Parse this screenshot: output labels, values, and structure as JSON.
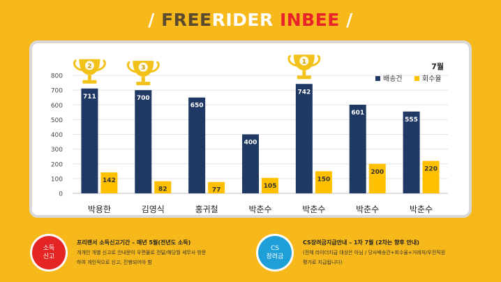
{
  "title": {
    "slash_left": "/",
    "free": "FREE",
    "rider": "RIDER",
    "inbee": "INBEE",
    "slash_right": "/"
  },
  "colors": {
    "background": "#f6b81a",
    "delivery": "#1f3864",
    "return_rate": "#ffc000",
    "trophy": "#f3c21a",
    "badge_red": "#e52424",
    "badge_blue": "#1e9fd8"
  },
  "chart_data": {
    "type": "bar",
    "month_label": "7월",
    "categories": [
      "박용한",
      "김영식",
      "홍귀철",
      "박춘수",
      "박춘수",
      "박춘수",
      "박춘수"
    ],
    "series": [
      {
        "name": "배송건",
        "values": [
          711,
          700,
          650,
          400,
          742,
          601,
          555
        ]
      },
      {
        "name": "회수율",
        "values": [
          142,
          82,
          77,
          105,
          150,
          200,
          220
        ]
      }
    ],
    "ylim": [
      0,
      800
    ],
    "yticks": [
      0,
      100,
      200,
      300,
      400,
      500,
      600,
      700,
      800
    ],
    "grid": true,
    "legend_position": "top-right",
    "trophies": [
      {
        "category_index": 0,
        "rank": "2"
      },
      {
        "category_index": 1,
        "rank": "3"
      },
      {
        "category_index": 4,
        "rank": "1"
      }
    ]
  },
  "notes": {
    "left": {
      "badge_line1": "소득",
      "badge_line2": "신고",
      "heading": "프리랜서  소득신고기간 – 매년 5월(전년도 소득)",
      "line1": "개개인 개별 신고로 안내문이 우편물로 전달/해당월 세무사 방문",
      "line2": "하여 개인적으로 신고, 진행되어야 함"
    },
    "right": {
      "badge_line1": "CS",
      "badge_line2": "장려금",
      "heading": "CS장려금지급안내 – 1차 7월 (2차는 향후 안내)",
      "line1": "(전체 라이더지급 대상은 아님  / 당사배송건+회수율+거래처/우전직원",
      "line2": "평가로 지급됩니다)"
    }
  }
}
